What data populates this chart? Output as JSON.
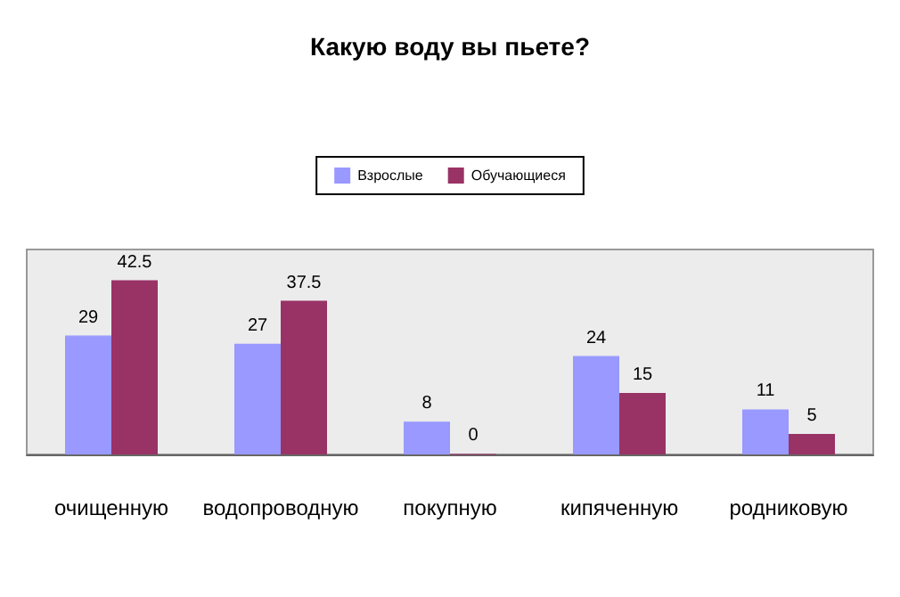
{
  "chart_data": {
    "type": "bar",
    "title": "Какую воду вы пьете?",
    "categories": [
      "очищенную",
      "водопроводную",
      "покупную",
      "кипяченную",
      "родниковую"
    ],
    "series": [
      {
        "name": "Взрослые",
        "color": "#9999ff",
        "values": [
          29,
          27,
          8,
          24,
          11
        ]
      },
      {
        "name": "Обучающиеся",
        "color": "#993366",
        "values": [
          42.5,
          37.5,
          0,
          15,
          5
        ]
      }
    ],
    "data_labels": true,
    "legend": "top"
  }
}
